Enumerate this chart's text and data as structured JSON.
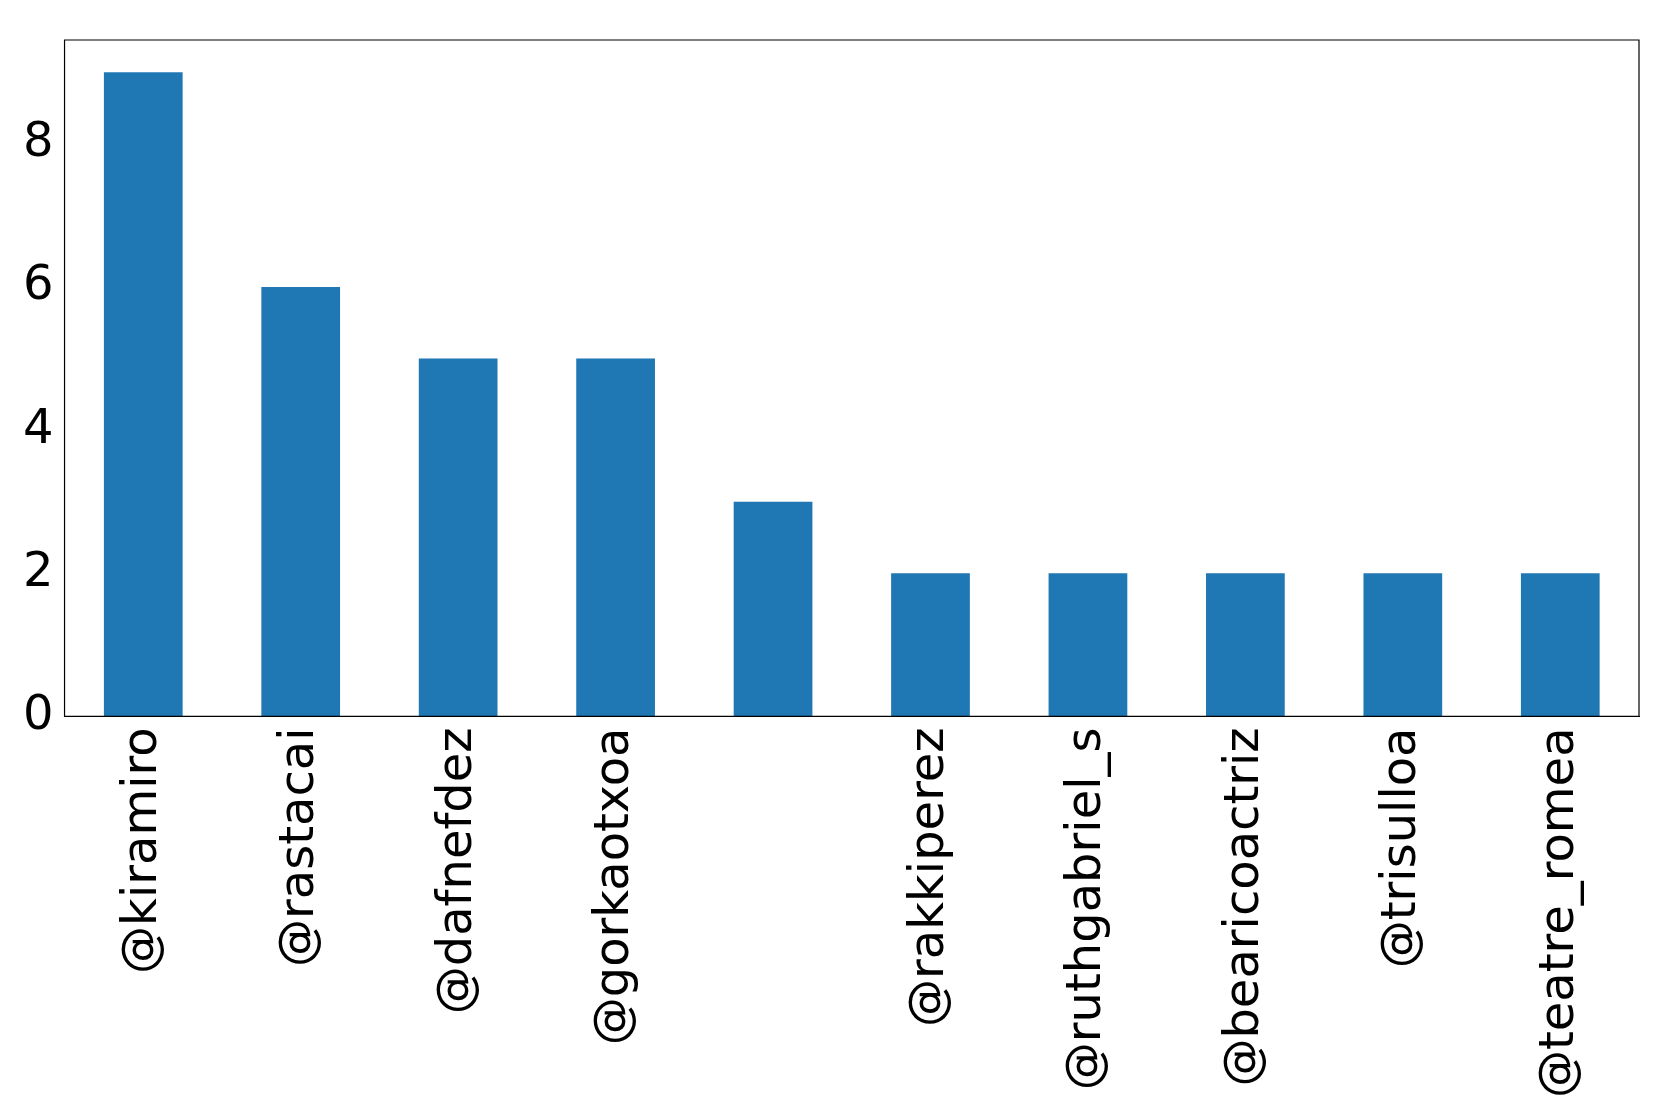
{
  "chart_data": {
    "type": "bar",
    "categories": [
      "@kiramiro",
      "@rastacai",
      "@dafnefdez",
      "@gorkaotxoa",
      null,
      "@rakkiperez",
      "@ruthgabriel_s",
      "@bearicoactriz",
      "@trisulloa",
      "@teatre_romea"
    ],
    "values": [
      9,
      6,
      5,
      5,
      3,
      2,
      2,
      2,
      2,
      2
    ],
    "color": "#1f77b4",
    "ylim": [
      0,
      9.45
    ],
    "yticks": [
      0,
      2,
      4,
      6,
      8
    ],
    "grid": false,
    "legend": false
  }
}
